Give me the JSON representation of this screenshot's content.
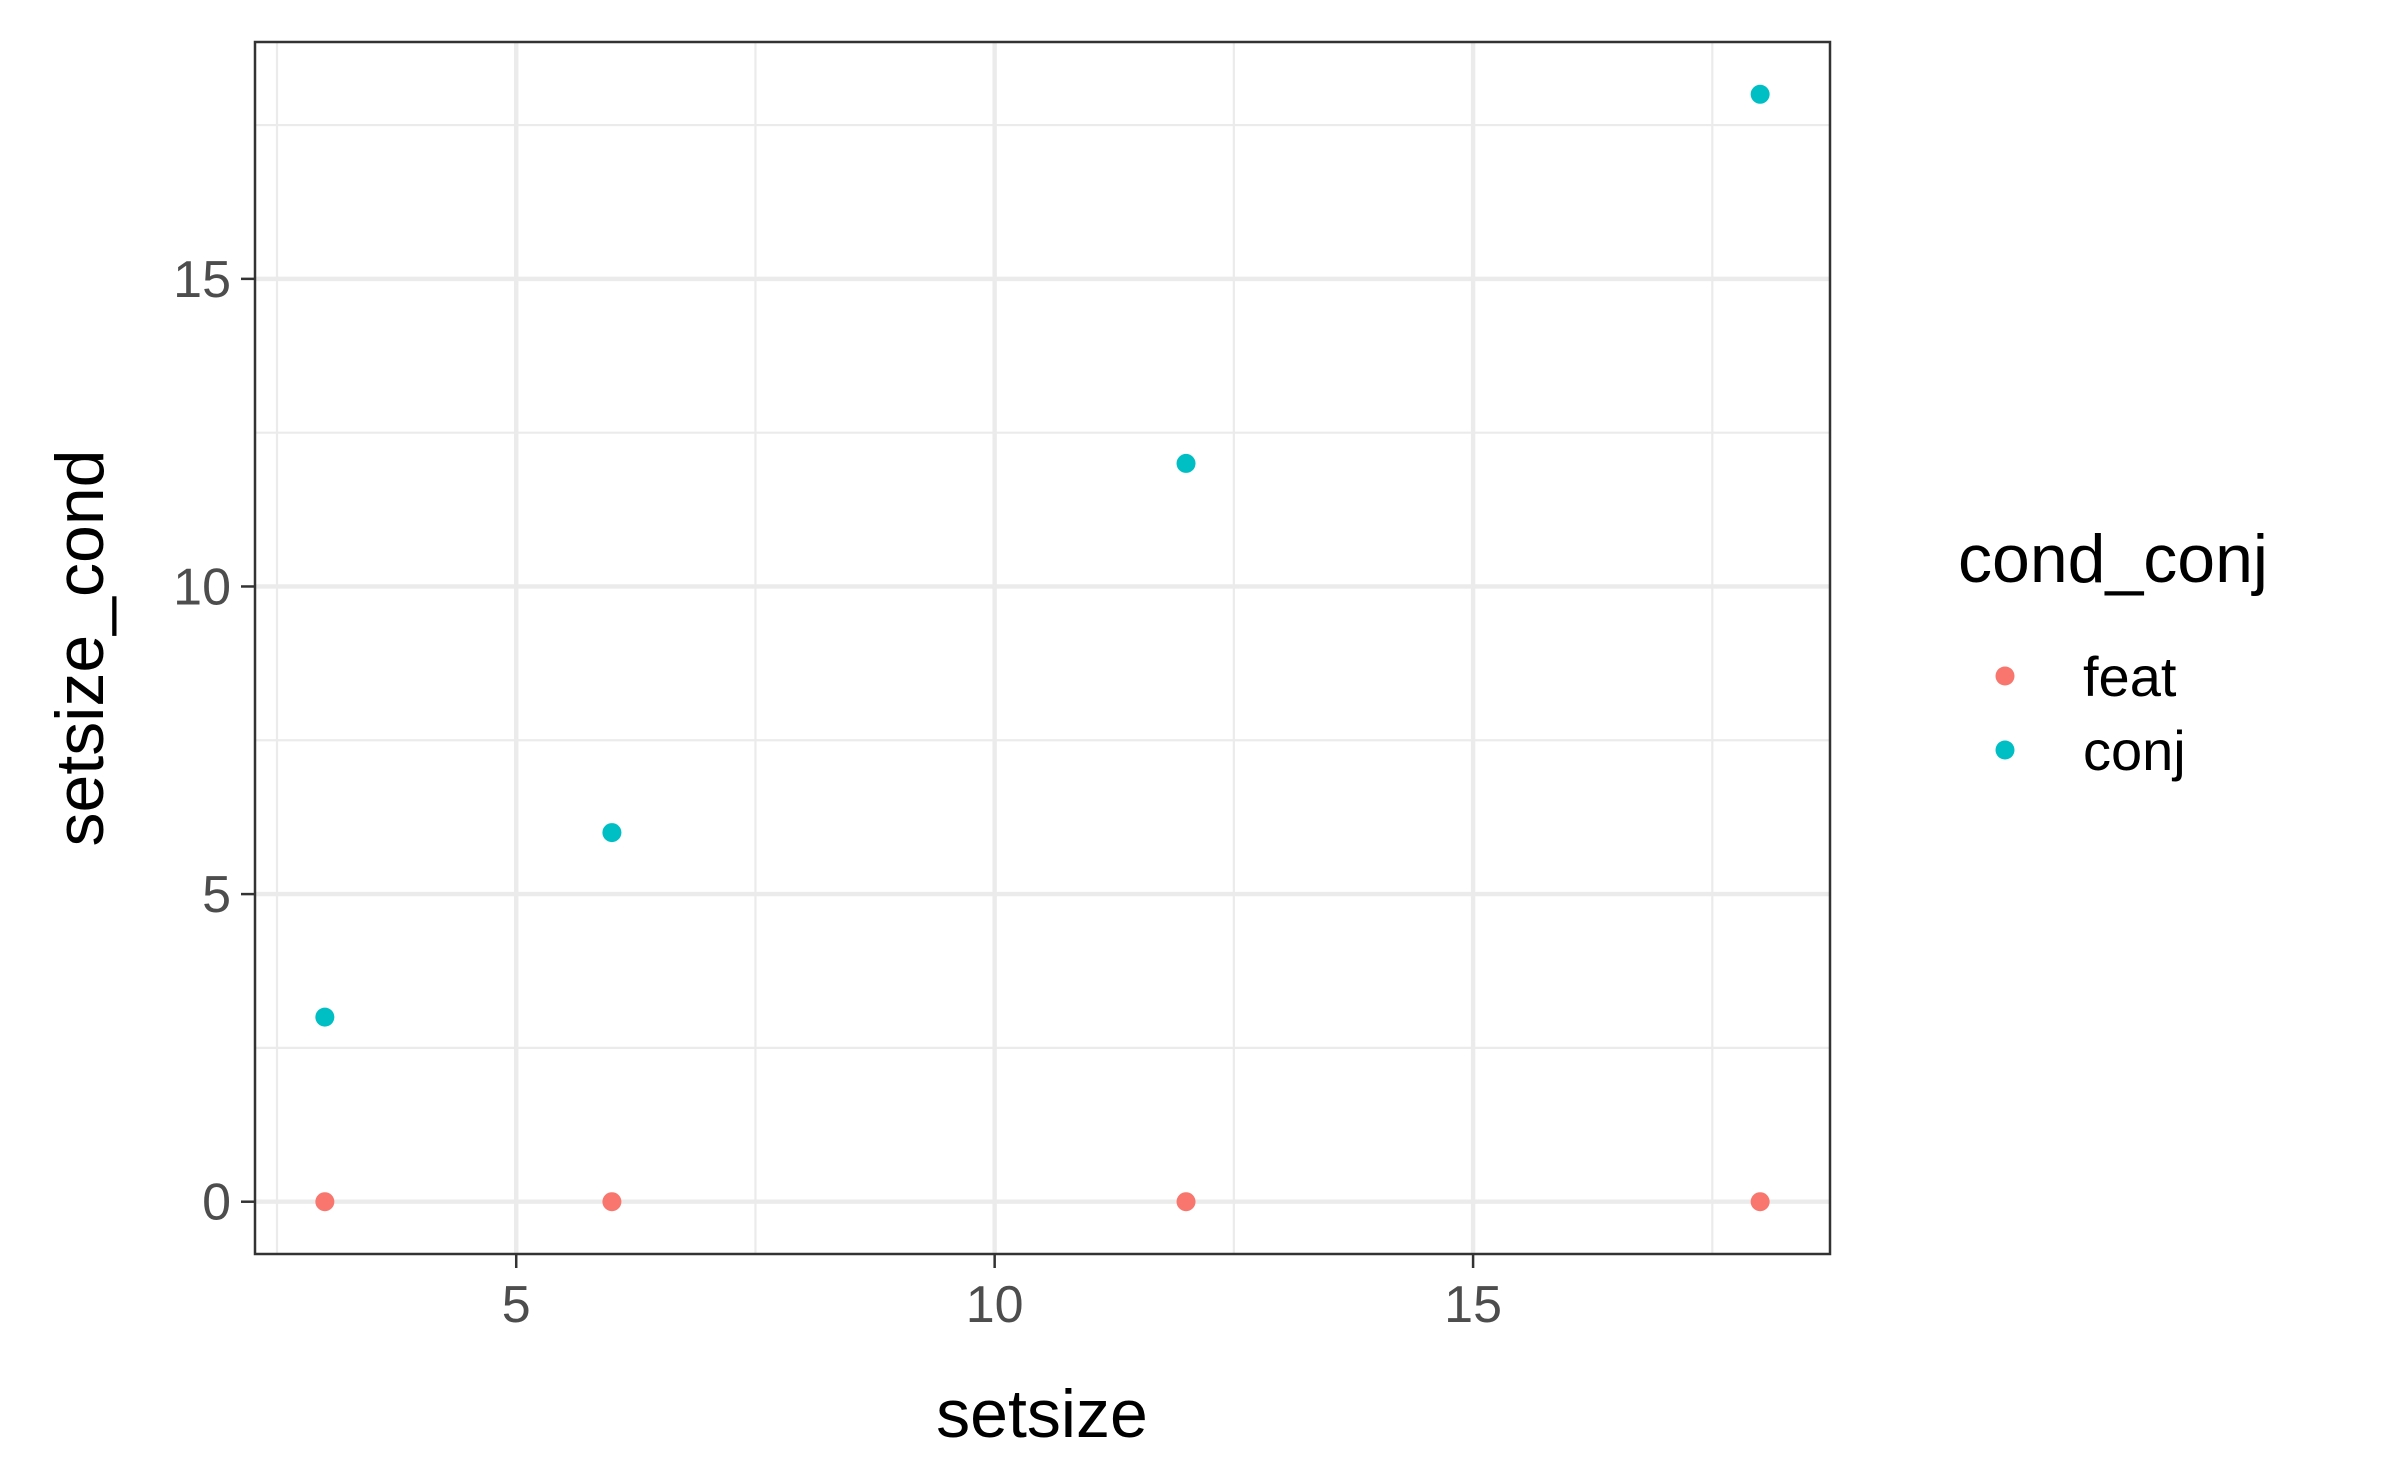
{
  "chart_data": {
    "type": "scatter",
    "xlabel": "setsize",
    "ylabel": "setsize_cond",
    "xlim": [
      2.27,
      18.73
    ],
    "ylim": [
      -0.85,
      18.85
    ],
    "x_ticks": [
      5,
      10,
      15
    ],
    "x_tick_labels": [
      "5",
      "10",
      "15"
    ],
    "x_minor_ticks": [
      2.5,
      7.5,
      12.5,
      17.5
    ],
    "y_ticks": [
      0,
      5,
      10,
      15
    ],
    "y_tick_labels": [
      "0",
      "5",
      "10",
      "15"
    ],
    "y_minor_ticks": [
      2.5,
      7.5,
      12.5,
      17.5
    ],
    "grid": true,
    "legend": {
      "title": "cond_conj",
      "position": "right"
    },
    "series": [
      {
        "name": "feat",
        "color": "#F8766D",
        "points": [
          {
            "x": 3,
            "y": 0
          },
          {
            "x": 6,
            "y": 0
          },
          {
            "x": 12,
            "y": 0
          },
          {
            "x": 18,
            "y": 0
          }
        ]
      },
      {
        "name": "conj",
        "color": "#00BFC4",
        "points": [
          {
            "x": 3,
            "y": 3
          },
          {
            "x": 6,
            "y": 6
          },
          {
            "x": 12,
            "y": 12
          },
          {
            "x": 18,
            "y": 18
          }
        ]
      }
    ]
  }
}
